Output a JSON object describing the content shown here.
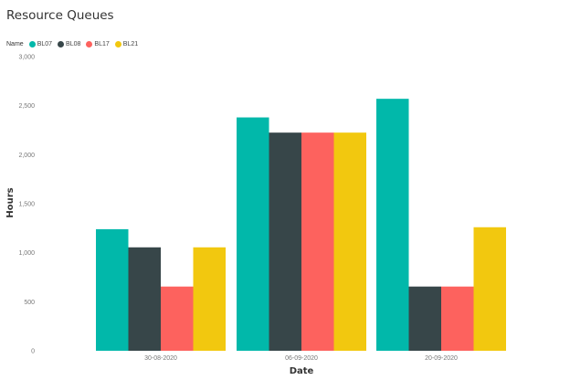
{
  "chart_data": {
    "type": "bar",
    "title": "Resource Queues",
    "legend_title": "Name",
    "legend_position": "top-left",
    "xlabel": "Date",
    "ylabel": "Hours",
    "categories": [
      "30-08-2020",
      "06-09-2020",
      "20-09-2020"
    ],
    "ylim": [
      0,
      3000
    ],
    "yticks": [
      0,
      500,
      1000,
      1500,
      2000,
      2500,
      3000
    ],
    "ytick_labels": [
      "0",
      "500",
      "1,000",
      "1,500",
      "2,000",
      "2,500",
      "3,000"
    ],
    "grid": false,
    "series": [
      {
        "name": "BL07",
        "color": "#01B8AA",
        "values": [
          1240,
          2380,
          2570
        ]
      },
      {
        "name": "BL08",
        "color": "#374649",
        "values": [
          1055,
          2225,
          655
        ]
      },
      {
        "name": "BL17",
        "color": "#FD625E",
        "values": [
          655,
          2225,
          655
        ]
      },
      {
        "name": "BL21",
        "color": "#F2C80F",
        "values": [
          1055,
          2225,
          1260
        ]
      }
    ]
  }
}
